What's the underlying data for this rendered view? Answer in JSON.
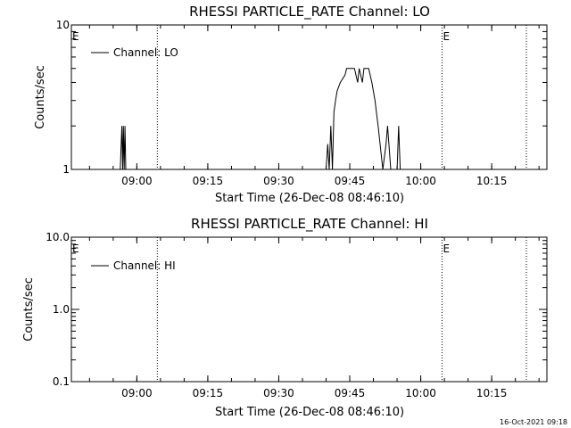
{
  "footer": {
    "timestamp": "16-Oct-2021 09:18"
  },
  "chart_data": [
    {
      "type": "line",
      "title": "RHESSI PARTICLE_RATE Channel: LO",
      "xlabel": "Start Time (26-Dec-08 08:46:10)",
      "ylabel": "Counts/sec",
      "yscale": "log",
      "ylim": [
        1,
        10
      ],
      "xlim": [
        "08:46:10",
        "10:26:40"
      ],
      "x_ticks": [
        "09:00",
        "09:15",
        "09:30",
        "09:45",
        "10:00",
        "10:15"
      ],
      "y_ticks": [
        "1",
        "10"
      ],
      "legend": {
        "position": "top-left",
        "entries": [
          "Channel: LO"
        ]
      },
      "event_markers": [
        {
          "time": "08:46:10",
          "label": "E"
        },
        {
          "time": "09:04:20",
          "label": ""
        },
        {
          "time": "10:04:30",
          "label": "E"
        },
        {
          "time": "10:22:20",
          "label": ""
        }
      ],
      "series": [
        {
          "name": "Channel: LO",
          "x": [
            "08:56:30",
            "08:56:50",
            "08:57:00",
            "08:57:10",
            "08:57:20",
            "08:57:30",
            "08:57:40",
            "08:57:50",
            "09:40:00",
            "09:40:20",
            "09:40:40",
            "09:41:00",
            "09:41:20",
            "09:41:40",
            "09:42:00",
            "09:42:20",
            "09:43:00",
            "09:44:00",
            "09:44:20",
            "09:45:00",
            "09:45:40",
            "09:46:00",
            "09:46:40",
            "09:47:00",
            "09:47:40",
            "09:48:00",
            "09:48:40",
            "09:49:00",
            "09:49:40",
            "09:50:20",
            "09:51:00",
            "09:52:00",
            "09:52:40",
            "09:53:00",
            "09:53:40",
            "09:54:00",
            "09:54:40",
            "09:55:00",
            "09:55:20",
            "09:55:40",
            "09:56:00",
            "09:56:20",
            "09:56:40"
          ],
          "values": [
            1,
            2,
            1,
            2,
            1,
            2,
            1,
            1,
            1,
            1.5,
            1,
            2,
            1,
            2.5,
            3,
            3.5,
            4,
            4.5,
            5,
            5,
            5,
            5,
            4,
            5,
            4,
            5,
            5,
            5,
            4,
            3,
            2,
            1,
            1.5,
            2,
            1,
            1,
            1,
            1,
            2,
            1,
            1,
            1,
            1
          ]
        }
      ]
    },
    {
      "type": "line",
      "title": "RHESSI PARTICLE_RATE Channel: HI",
      "xlabel": "Start Time (26-Dec-08 08:46:10)",
      "ylabel": "Counts/sec",
      "yscale": "log",
      "ylim": [
        0.1,
        10
      ],
      "xlim": [
        "08:46:10",
        "10:26:40"
      ],
      "x_ticks": [
        "09:00",
        "09:15",
        "09:30",
        "09:45",
        "10:00",
        "10:15"
      ],
      "y_ticks": [
        "0.1",
        "1.0",
        "10.0"
      ],
      "legend": {
        "position": "top-left",
        "entries": [
          "Channel: HI"
        ]
      },
      "event_markers": [
        {
          "time": "08:46:10",
          "label": "E"
        },
        {
          "time": "09:04:20",
          "label": ""
        },
        {
          "time": "10:04:30",
          "label": "E"
        },
        {
          "time": "10:22:20",
          "label": ""
        }
      ],
      "series": [
        {
          "name": "Channel: HI",
          "x": [],
          "values": []
        }
      ]
    }
  ]
}
